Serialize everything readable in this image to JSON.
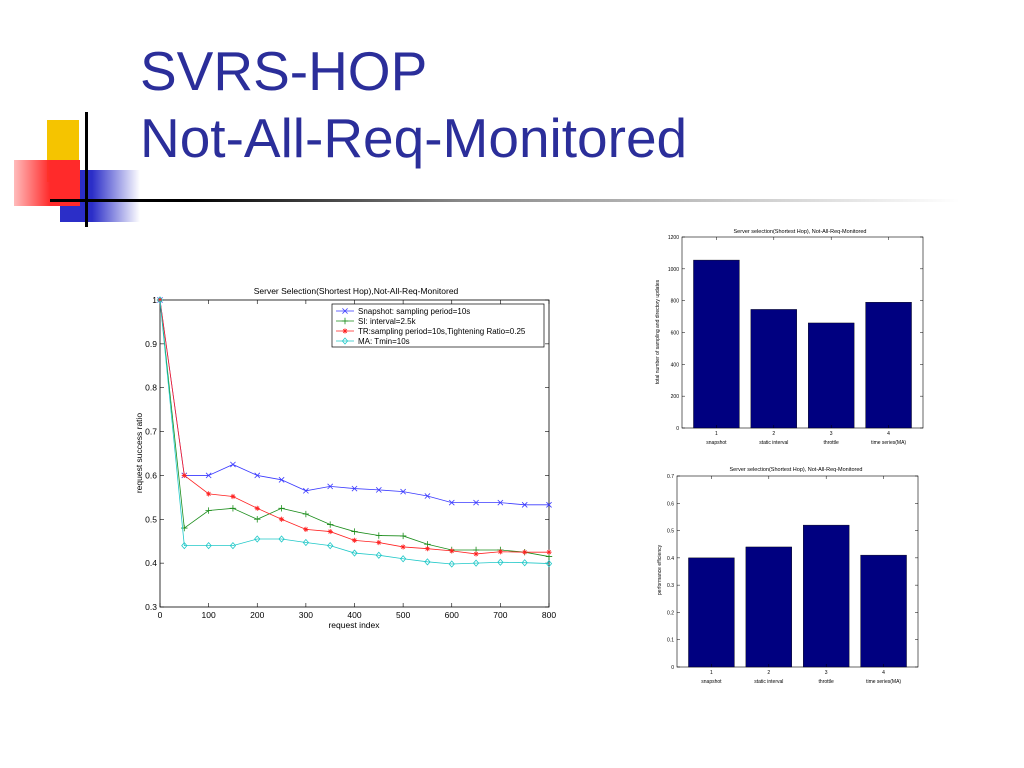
{
  "slide": {
    "title_line1": "SVRS-HOP",
    "title_line2": "Not-All-Req-Monitored",
    "colors": {
      "title": "#2b2e9a",
      "deco_yellow": "#f5c400",
      "deco_red": "#ff2a2a",
      "deco_blue": "#2b2ec8",
      "deco_line": "#000000"
    }
  },
  "chart_data": [
    {
      "type": "line",
      "title": "Server Selection(Shortest Hop),Not-All-Req-Monitored",
      "xlabel": "request index",
      "ylabel": "request success ratio",
      "xlim": [
        0,
        800
      ],
      "ylim": [
        0.3,
        1
      ],
      "xticks": [
        "0",
        "100",
        "200",
        "300",
        "400",
        "500",
        "600",
        "700",
        "800"
      ],
      "yticks": [
        "0.3",
        "0.4",
        "0.5",
        "0.6",
        "0.7",
        "0.8",
        "0.9",
        "1"
      ],
      "legend_position": "top-right",
      "x": [
        0,
        50,
        100,
        150,
        200,
        250,
        300,
        350,
        400,
        450,
        500,
        550,
        600,
        650,
        700,
        750,
        800
      ],
      "series": [
        {
          "name": "Snapshot: sampling period=10s",
          "color": "#3a3aff",
          "marker": "x",
          "values": [
            1.0,
            0.6,
            0.6,
            0.625,
            0.6,
            0.59,
            0.565,
            0.575,
            0.57,
            0.567,
            0.563,
            0.553,
            0.538,
            0.538,
            0.538,
            0.533,
            0.533
          ]
        },
        {
          "name": "SI: interval=2.5k",
          "color": "#1a8c1a",
          "marker": "+",
          "values": [
            1.0,
            0.48,
            0.52,
            0.525,
            0.5,
            0.525,
            0.512,
            0.488,
            0.472,
            0.463,
            0.462,
            0.443,
            0.43,
            0.43,
            0.43,
            0.425,
            0.415
          ]
        },
        {
          "name": "TR:sampling period=10s,Tightening Ratio=0.25",
          "color": "#ff2020",
          "marker": "*",
          "values": [
            1.0,
            0.6,
            0.558,
            0.552,
            0.525,
            0.5,
            0.477,
            0.472,
            0.452,
            0.447,
            0.437,
            0.433,
            0.428,
            0.421,
            0.426,
            0.425,
            0.425
          ]
        },
        {
          "name": "MA: Tmin=10s",
          "color": "#20c8c8",
          "marker": "diamond",
          "values": [
            1.0,
            0.44,
            0.44,
            0.44,
            0.455,
            0.455,
            0.447,
            0.44,
            0.423,
            0.418,
            0.41,
            0.403,
            0.398,
            0.4,
            0.402,
            0.401,
            0.399
          ]
        }
      ]
    },
    {
      "type": "bar",
      "title": "Server selection(Shortest Hop), Not-All-Req-Monitored",
      "ylabel": "total number of sampling and directory updates",
      "categories": [
        "1",
        "2",
        "3",
        "4"
      ],
      "category_names": [
        "snapshot",
        "static interval",
        "throttle",
        "time series(MA)"
      ],
      "values": [
        1055,
        745,
        660,
        790
      ],
      "ylim": [
        0,
        1200
      ],
      "yticks": [
        "0",
        "200",
        "400",
        "600",
        "800",
        "1000",
        "1200"
      ],
      "bar_color": "#000080"
    },
    {
      "type": "bar",
      "title": "Server selection(Shortest Hop), Not-All-Req-Monitored",
      "ylabel": "performance efficiency",
      "categories": [
        "1",
        "2",
        "3",
        "4"
      ],
      "category_names": [
        "snapshot",
        "static interval",
        "throttle",
        "time series(MA)"
      ],
      "values": [
        0.4,
        0.44,
        0.52,
        0.41
      ],
      "ylim": [
        0,
        0.7
      ],
      "yticks": [
        "0",
        "0.1",
        "0.2",
        "0.3",
        "0.4",
        "0.5",
        "0.6",
        "0.7"
      ],
      "bar_color": "#000080"
    }
  ]
}
